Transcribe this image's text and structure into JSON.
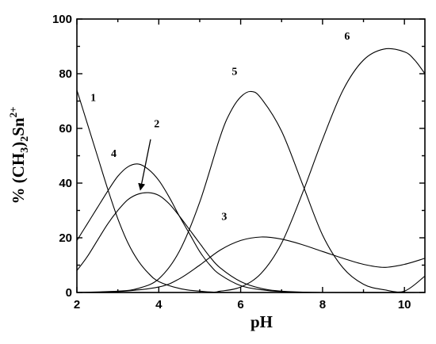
{
  "chart_data": {
    "type": "line",
    "title": "",
    "xlabel": "pH",
    "ylabel_parts": {
      "prefix": "% (CH",
      "sub": "3",
      "mid": ")",
      "sub2": "2",
      "suffix": "Sn",
      "sup": "2+"
    },
    "xlim": [
      2,
      10.5
    ],
    "ylim": [
      0,
      100
    ],
    "x_ticks": [
      "2",
      "4",
      "6",
      "8",
      "10"
    ],
    "y_ticks": [
      "0",
      "20",
      "40",
      "60",
      "80",
      "100"
    ],
    "grid": false,
    "legend": "none",
    "series": [
      {
        "label": "1",
        "points": [
          [
            2.0,
            74
          ],
          [
            2.25,
            62
          ],
          [
            2.5,
            50
          ],
          [
            2.75,
            38
          ],
          [
            3.0,
            27
          ],
          [
            3.25,
            18
          ],
          [
            3.5,
            11.5
          ],
          [
            3.75,
            7
          ],
          [
            4.0,
            4
          ],
          [
            4.5,
            1.5
          ],
          [
            5.0,
            0.5
          ],
          [
            6.0,
            0
          ],
          [
            10.5,
            0
          ]
        ]
      },
      {
        "label": "2",
        "points": [
          [
            2.0,
            8
          ],
          [
            2.25,
            13
          ],
          [
            2.5,
            19
          ],
          [
            2.75,
            25
          ],
          [
            3.0,
            30
          ],
          [
            3.25,
            34
          ],
          [
            3.5,
            36
          ],
          [
            3.75,
            36.5
          ],
          [
            4.0,
            35.5
          ],
          [
            4.25,
            32.5
          ],
          [
            4.5,
            28
          ],
          [
            4.75,
            23
          ],
          [
            5.0,
            18
          ],
          [
            5.25,
            13
          ],
          [
            5.5,
            9
          ],
          [
            6.0,
            4
          ],
          [
            6.5,
            1.5
          ],
          [
            7.0,
            0.5
          ],
          [
            8.0,
            0
          ],
          [
            10.5,
            0
          ]
        ]
      },
      {
        "label": "3",
        "points": [
          [
            2.0,
            0
          ],
          [
            3.0,
            0.3
          ],
          [
            4.0,
            2
          ],
          [
            4.5,
            5
          ],
          [
            5.0,
            10
          ],
          [
            5.5,
            15.5
          ],
          [
            6.0,
            19
          ],
          [
            6.5,
            20.3
          ],
          [
            7.0,
            19.5
          ],
          [
            7.5,
            17.5
          ],
          [
            8.0,
            15
          ],
          [
            8.5,
            12.5
          ],
          [
            9.0,
            10.3
          ],
          [
            9.5,
            9.2
          ],
          [
            10.0,
            10.3
          ],
          [
            10.5,
            12.5
          ]
        ]
      },
      {
        "label": "4",
        "points": [
          [
            2.0,
            19
          ],
          [
            2.25,
            25
          ],
          [
            2.5,
            31
          ],
          [
            2.75,
            37
          ],
          [
            3.0,
            42.5
          ],
          [
            3.25,
            46
          ],
          [
            3.5,
            47
          ],
          [
            3.75,
            45
          ],
          [
            4.0,
            41
          ],
          [
            4.25,
            35
          ],
          [
            4.5,
            28
          ],
          [
            4.75,
            21.5
          ],
          [
            5.0,
            15
          ],
          [
            5.25,
            10
          ],
          [
            5.5,
            6.5
          ],
          [
            6.0,
            2.5
          ],
          [
            6.5,
            1
          ],
          [
            7.0,
            0.3
          ],
          [
            8.0,
            0
          ],
          [
            10.5,
            0
          ]
        ]
      },
      {
        "label": "5",
        "points": [
          [
            2.0,
            0
          ],
          [
            3.0,
            0.5
          ],
          [
            3.5,
            1.5
          ],
          [
            4.0,
            5
          ],
          [
            4.5,
            15
          ],
          [
            5.0,
            33
          ],
          [
            5.5,
            57
          ],
          [
            5.75,
            66
          ],
          [
            6.0,
            71.5
          ],
          [
            6.25,
            73.5
          ],
          [
            6.5,
            71
          ],
          [
            7.0,
            59
          ],
          [
            7.5,
            40
          ],
          [
            8.0,
            21
          ],
          [
            8.5,
            9
          ],
          [
            9.0,
            3
          ],
          [
            9.5,
            1
          ],
          [
            10.0,
            0.5
          ],
          [
            10.5,
            6
          ]
        ]
      },
      {
        "label": "6",
        "points": [
          [
            2.0,
            0
          ],
          [
            5.0,
            0
          ],
          [
            5.5,
            0.5
          ],
          [
            6.0,
            2
          ],
          [
            6.5,
            7
          ],
          [
            7.0,
            18
          ],
          [
            7.5,
            36
          ],
          [
            8.0,
            56
          ],
          [
            8.5,
            74
          ],
          [
            9.0,
            85
          ],
          [
            9.5,
            89
          ],
          [
            10.0,
            88
          ],
          [
            10.25,
            85
          ],
          [
            10.5,
            80
          ]
        ]
      }
    ],
    "annotations": [
      {
        "text": "1",
        "x": 2.4,
        "y": 70
      },
      {
        "text": "2",
        "x": 3.95,
        "y": 60.5
      },
      {
        "text": "3",
        "x": 5.6,
        "y": 26.5
      },
      {
        "text": "4",
        "x": 2.9,
        "y": 49.5
      },
      {
        "text": "5",
        "x": 5.85,
        "y": 79.5
      },
      {
        "text": "6",
        "x": 8.6,
        "y": 92.5
      }
    ],
    "arrow": {
      "from": [
        3.8,
        56
      ],
      "to": [
        3.55,
        37.5
      ]
    }
  }
}
